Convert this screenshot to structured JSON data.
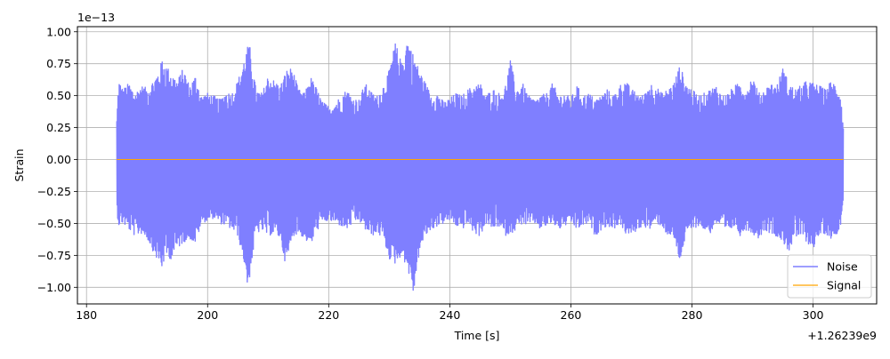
{
  "chart_data": {
    "type": "line",
    "title": "",
    "xlabel": "Time [s]",
    "ylabel": "Strain",
    "x_offset_label": "+1.26239e9",
    "y_scale_label": "1e−13",
    "xlim": [
      178.5,
      310.5
    ],
    "ylim": [
      -1.13,
      1.04
    ],
    "x_ticks": [
      180,
      200,
      220,
      240,
      260,
      280,
      300
    ],
    "x_tick_labels": [
      "180",
      "200",
      "220",
      "240",
      "260",
      "280",
      "300"
    ],
    "y_ticks": [
      1.0,
      0.75,
      0.5,
      0.25,
      0.0,
      -0.25,
      -0.5,
      -0.75,
      -1.0
    ],
    "y_tick_labels": [
      "1.00",
      "0.75",
      "0.50",
      "0.25",
      "0.00",
      "−0.25",
      "−0.50",
      "−0.75",
      "−1.00"
    ],
    "grid": true,
    "legend_position": "bottom-right",
    "series": [
      {
        "name": "Noise",
        "color": "#7f7fff",
        "x_range": [
          185,
          305
        ],
        "envelope_upper": [
          [
            185,
            0.32
          ],
          [
            185.3,
            0.63
          ],
          [
            186,
            0.55
          ],
          [
            187,
            0.6
          ],
          [
            188,
            0.52
          ],
          [
            189,
            0.58
          ],
          [
            190,
            0.56
          ],
          [
            191,
            0.62
          ],
          [
            192,
            0.7
          ],
          [
            192.5,
            0.79
          ],
          [
            193,
            0.75
          ],
          [
            194,
            0.68
          ],
          [
            195,
            0.62
          ],
          [
            196,
            0.72
          ],
          [
            197,
            0.58
          ],
          [
            198,
            0.66
          ],
          [
            199,
            0.5
          ],
          [
            200,
            0.52
          ],
          [
            201,
            0.5
          ],
          [
            202,
            0.47
          ],
          [
            203,
            0.53
          ],
          [
            204,
            0.52
          ],
          [
            205,
            0.62
          ],
          [
            206,
            0.78
          ],
          [
            206.7,
            0.9
          ],
          [
            207,
            0.88
          ],
          [
            208,
            0.55
          ],
          [
            209,
            0.52
          ],
          [
            210,
            0.66
          ],
          [
            211,
            0.62
          ],
          [
            212,
            0.58
          ],
          [
            213,
            0.7
          ],
          [
            214,
            0.72
          ],
          [
            215,
            0.55
          ],
          [
            216,
            0.52
          ],
          [
            217,
            0.65
          ],
          [
            218,
            0.56
          ],
          [
            219,
            0.45
          ],
          [
            220,
            0.42
          ],
          [
            221,
            0.44
          ],
          [
            222,
            0.5
          ],
          [
            223,
            0.55
          ],
          [
            224,
            0.48
          ],
          [
            225,
            0.47
          ],
          [
            226,
            0.6
          ],
          [
            227,
            0.53
          ],
          [
            228,
            0.5
          ],
          [
            229,
            0.58
          ],
          [
            230,
            0.7
          ],
          [
            231,
            0.92
          ],
          [
            232,
            0.76
          ],
          [
            233,
            0.95
          ],
          [
            234,
            0.82
          ],
          [
            235,
            0.7
          ],
          [
            236,
            0.6
          ],
          [
            237,
            0.5
          ],
          [
            238,
            0.52
          ],
          [
            239,
            0.45
          ],
          [
            240,
            0.48
          ],
          [
            241,
            0.52
          ],
          [
            242,
            0.5
          ],
          [
            243,
            0.55
          ],
          [
            244,
            0.58
          ],
          [
            245,
            0.6
          ],
          [
            246,
            0.5
          ],
          [
            247,
            0.56
          ],
          [
            248,
            0.52
          ],
          [
            249,
            0.54
          ],
          [
            250,
            0.78
          ],
          [
            251,
            0.55
          ],
          [
            252,
            0.6
          ],
          [
            253,
            0.5
          ],
          [
            254,
            0.47
          ],
          [
            255,
            0.5
          ],
          [
            256,
            0.52
          ],
          [
            257,
            0.6
          ],
          [
            258,
            0.5
          ],
          [
            259,
            0.52
          ],
          [
            260,
            0.48
          ],
          [
            261,
            0.58
          ],
          [
            262,
            0.5
          ],
          [
            263,
            0.52
          ],
          [
            264,
            0.47
          ],
          [
            265,
            0.5
          ],
          [
            266,
            0.55
          ],
          [
            267,
            0.5
          ],
          [
            268,
            0.58
          ],
          [
            269,
            0.62
          ],
          [
            270,
            0.55
          ],
          [
            271,
            0.52
          ],
          [
            272,
            0.5
          ],
          [
            273,
            0.6
          ],
          [
            274,
            0.58
          ],
          [
            275,
            0.52
          ],
          [
            276,
            0.55
          ],
          [
            277,
            0.6
          ],
          [
            278,
            0.74
          ],
          [
            279,
            0.6
          ],
          [
            280,
            0.55
          ],
          [
            281,
            0.5
          ],
          [
            282,
            0.52
          ],
          [
            283,
            0.55
          ],
          [
            284,
            0.58
          ],
          [
            285,
            0.5
          ],
          [
            286,
            0.52
          ],
          [
            287,
            0.58
          ],
          [
            288,
            0.6
          ],
          [
            289,
            0.55
          ],
          [
            290,
            0.66
          ],
          [
            291,
            0.52
          ],
          [
            292,
            0.55
          ],
          [
            293,
            0.6
          ],
          [
            294,
            0.58
          ],
          [
            295,
            0.72
          ],
          [
            296,
            0.6
          ],
          [
            297,
            0.55
          ],
          [
            298,
            0.58
          ],
          [
            299,
            0.62
          ],
          [
            300,
            0.6
          ],
          [
            301,
            0.58
          ],
          [
            302,
            0.55
          ],
          [
            303,
            0.62
          ],
          [
            304,
            0.58
          ],
          [
            304.6,
            0.5
          ],
          [
            305,
            0.25
          ]
        ],
        "envelope_lower": [
          [
            185,
            -0.4
          ],
          [
            185.3,
            -0.52
          ],
          [
            186,
            -0.5
          ],
          [
            187,
            -0.55
          ],
          [
            188,
            -0.6
          ],
          [
            189,
            -0.58
          ],
          [
            190,
            -0.62
          ],
          [
            191,
            -0.72
          ],
          [
            192,
            -0.82
          ],
          [
            192.5,
            -0.86
          ],
          [
            193,
            -0.76
          ],
          [
            194,
            -0.78
          ],
          [
            195,
            -0.7
          ],
          [
            196,
            -0.65
          ],
          [
            197,
            -0.62
          ],
          [
            198,
            -0.66
          ],
          [
            199,
            -0.5
          ],
          [
            200,
            -0.48
          ],
          [
            201,
            -0.46
          ],
          [
            202,
            -0.5
          ],
          [
            203,
            -0.52
          ],
          [
            204,
            -0.55
          ],
          [
            205,
            -0.6
          ],
          [
            206,
            -0.8
          ],
          [
            206.7,
            -1.04
          ],
          [
            207,
            -0.9
          ],
          [
            208,
            -0.58
          ],
          [
            209,
            -0.56
          ],
          [
            210,
            -0.6
          ],
          [
            211,
            -0.58
          ],
          [
            212,
            -0.62
          ],
          [
            213,
            -0.85
          ],
          [
            214,
            -0.6
          ],
          [
            215,
            -0.58
          ],
          [
            216,
            -0.62
          ],
          [
            217,
            -0.68
          ],
          [
            218,
            -0.56
          ],
          [
            219,
            -0.5
          ],
          [
            220,
            -0.48
          ],
          [
            221,
            -0.5
          ],
          [
            222,
            -0.52
          ],
          [
            223,
            -0.55
          ],
          [
            224,
            -0.5
          ],
          [
            225,
            -0.48
          ],
          [
            226,
            -0.55
          ],
          [
            227,
            -0.6
          ],
          [
            228,
            -0.58
          ],
          [
            229,
            -0.62
          ],
          [
            230,
            -0.78
          ],
          [
            231,
            -0.82
          ],
          [
            232,
            -0.75
          ],
          [
            233,
            -0.85
          ],
          [
            234,
            -1.06
          ],
          [
            235,
            -0.72
          ],
          [
            236,
            -0.6
          ],
          [
            237,
            -0.55
          ],
          [
            238,
            -0.52
          ],
          [
            239,
            -0.5
          ],
          [
            240,
            -0.48
          ],
          [
            241,
            -0.52
          ],
          [
            242,
            -0.55
          ],
          [
            243,
            -0.5
          ],
          [
            244,
            -0.58
          ],
          [
            245,
            -0.6
          ],
          [
            246,
            -0.5
          ],
          [
            247,
            -0.55
          ],
          [
            248,
            -0.52
          ],
          [
            249,
            -0.6
          ],
          [
            250,
            -0.58
          ],
          [
            251,
            -0.55
          ],
          [
            252,
            -0.5
          ],
          [
            253,
            -0.52
          ],
          [
            254,
            -0.5
          ],
          [
            255,
            -0.55
          ],
          [
            256,
            -0.52
          ],
          [
            257,
            -0.5
          ],
          [
            258,
            -0.55
          ],
          [
            259,
            -0.52
          ],
          [
            260,
            -0.5
          ],
          [
            261,
            -0.55
          ],
          [
            262,
            -0.52
          ],
          [
            263,
            -0.5
          ],
          [
            264,
            -0.6
          ],
          [
            265,
            -0.55
          ],
          [
            266,
            -0.52
          ],
          [
            267,
            -0.55
          ],
          [
            268,
            -0.5
          ],
          [
            269,
            -0.58
          ],
          [
            270,
            -0.6
          ],
          [
            271,
            -0.55
          ],
          [
            272,
            -0.52
          ],
          [
            273,
            -0.55
          ],
          [
            274,
            -0.5
          ],
          [
            275,
            -0.52
          ],
          [
            276,
            -0.6
          ],
          [
            277,
            -0.62
          ],
          [
            278,
            -0.8
          ],
          [
            279,
            -0.6
          ],
          [
            280,
            -0.55
          ],
          [
            281,
            -0.52
          ],
          [
            282,
            -0.55
          ],
          [
            283,
            -0.58
          ],
          [
            284,
            -0.5
          ],
          [
            285,
            -0.55
          ],
          [
            286,
            -0.58
          ],
          [
            287,
            -0.52
          ],
          [
            288,
            -0.6
          ],
          [
            289,
            -0.55
          ],
          [
            290,
            -0.58
          ],
          [
            291,
            -0.62
          ],
          [
            292,
            -0.55
          ],
          [
            293,
            -0.58
          ],
          [
            294,
            -0.6
          ],
          [
            295,
            -0.65
          ],
          [
            296,
            -0.72
          ],
          [
            297,
            -0.62
          ],
          [
            298,
            -0.6
          ],
          [
            299,
            -0.65
          ],
          [
            300,
            -0.7
          ],
          [
            301,
            -0.6
          ],
          [
            302,
            -0.58
          ],
          [
            303,
            -0.62
          ],
          [
            304,
            -0.58
          ],
          [
            304.6,
            -0.5
          ],
          [
            305,
            -0.3
          ]
        ]
      },
      {
        "name": "Signal",
        "color": "#ffa500",
        "x": [
          185,
          305
        ],
        "y": [
          0.0,
          0.0
        ]
      }
    ]
  }
}
